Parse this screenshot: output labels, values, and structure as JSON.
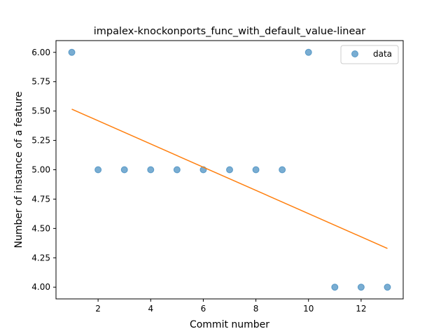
{
  "chart_data": {
    "type": "scatter",
    "title": "impalex-knockonports_func_with_default_value-linear",
    "xlabel": "Commit number",
    "ylabel": "Number of instance of a feature",
    "xlim": [
      0.4,
      13.6
    ],
    "ylim": [
      3.9,
      6.1
    ],
    "xticks": [
      2,
      4,
      6,
      8,
      10,
      12
    ],
    "yticks": [
      4.0,
      4.25,
      4.5,
      4.75,
      5.0,
      5.25,
      5.5,
      5.75,
      6.0
    ],
    "xtick_labels": [
      "2",
      "4",
      "6",
      "8",
      "10",
      "12"
    ],
    "ytick_labels": [
      "4.00",
      "4.25",
      "4.50",
      "4.75",
      "5.00",
      "5.25",
      "5.50",
      "5.75",
      "6.00"
    ],
    "grid": false,
    "legend": {
      "placement": "top-right",
      "entries": [
        "data"
      ]
    },
    "series": [
      {
        "name": "data",
        "type": "scatter",
        "color": "#1f77b4",
        "x": [
          1,
          2,
          3,
          4,
          5,
          6,
          7,
          8,
          9,
          10,
          11,
          12,
          13
        ],
        "y": [
          6,
          5,
          5,
          5,
          5,
          5,
          5,
          5,
          5,
          6,
          4,
          4,
          4
        ]
      },
      {
        "type": "line",
        "color": "#ff7f0e",
        "x": [
          1,
          13
        ],
        "y": [
          5.516,
          4.33
        ]
      }
    ]
  }
}
